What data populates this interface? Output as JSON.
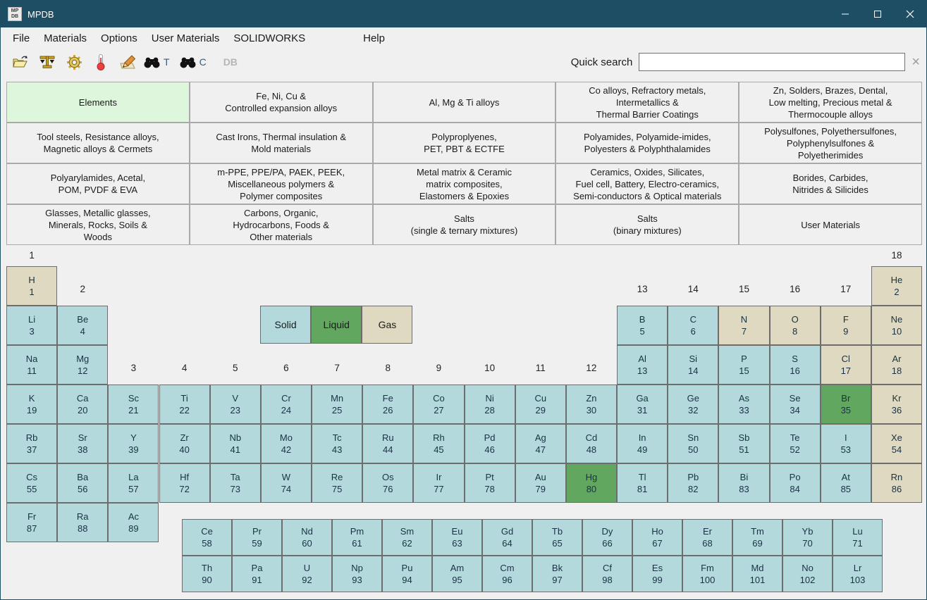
{
  "window": {
    "title": "MPDB",
    "icon_text_top": "MP",
    "icon_text_bottom": "DB"
  },
  "menu": {
    "items": [
      "File",
      "Materials",
      "Options",
      "User Materials",
      "SOLIDWORKS",
      "Help"
    ]
  },
  "toolbar": {
    "letter_t": "T",
    "letter_c": "C",
    "db_label": "DB",
    "search_label": "Quick search",
    "search_value": "",
    "clear_glyph": "×"
  },
  "categories": {
    "active": "Elements",
    "rows": [
      [
        "Elements",
        "Fe, Ni, Cu &\nControlled expansion alloys",
        "Al, Mg & Ti alloys",
        "Co alloys, Refractory metals,\nIntermetallics &\nThermal Barrier Coatings",
        "Zn, Solders, Brazes, Dental,\nLow melting, Precious metal &\nThermocouple alloys"
      ],
      [
        "Tool steels, Resistance alloys,\nMagnetic alloys & Cermets",
        "Cast Irons, Thermal insulation &\nMold materials",
        "Polyproplyenes,\nPET, PBT & ECTFE",
        "Polyamides, Polyamide-imides,\nPolyesters & Polyphthalamides",
        "Polysulfones, Polyethersulfones,\nPolyphenylsulfones &\nPolyetherimides"
      ],
      [
        "Polyarylamides, Acetal,\nPOM, PVDF & EVA",
        "m-PPE, PPE/PA, PAEK, PEEK,\nMiscellaneous polymers &\nPolymer composites",
        "Metal matrix & Ceramic\nmatrix composites,\nElastomers & Epoxies",
        "Ceramics, Oxides, Silicates,\nFuel cell, Battery, Electro-ceramics,\nSemi-conductors & Optical materials",
        "Borides, Carbides,\nNitrides & Silicides"
      ],
      [
        "Glasses, Metallic glasses,\nMinerals, Rocks, Soils &\nWoods",
        "Carbons, Organic,\nHydrocarbons, Foods &\nOther materials",
        "Salts\n(single & ternary mixtures)",
        "Salts\n(binary mixtures)",
        "User Materials"
      ]
    ]
  },
  "legend": [
    {
      "label": "Solid",
      "state": "solid"
    },
    {
      "label": "Liquid",
      "state": "liquid"
    },
    {
      "label": "Gas",
      "state": "gas"
    }
  ],
  "periodic_table": {
    "group_labels": [
      {
        "text": "1",
        "col": 1,
        "band": "top"
      },
      {
        "text": "18",
        "col": 18,
        "band": "top"
      },
      {
        "text": "2",
        "col": 2,
        "band": "mid"
      },
      {
        "text": "13",
        "col": 13,
        "band": "mid"
      },
      {
        "text": "14",
        "col": 14,
        "band": "mid"
      },
      {
        "text": "15",
        "col": 15,
        "band": "mid"
      },
      {
        "text": "16",
        "col": 16,
        "band": "mid"
      },
      {
        "text": "17",
        "col": 17,
        "band": "mid"
      },
      {
        "text": "3",
        "col": 3,
        "band": "low"
      },
      {
        "text": "4",
        "col": 4,
        "band": "low"
      },
      {
        "text": "5",
        "col": 5,
        "band": "low"
      },
      {
        "text": "6",
        "col": 6,
        "band": "low"
      },
      {
        "text": "7",
        "col": 7,
        "band": "low"
      },
      {
        "text": "8",
        "col": 8,
        "band": "low"
      },
      {
        "text": "9",
        "col": 9,
        "band": "low"
      },
      {
        "text": "10",
        "col": 10,
        "band": "low"
      },
      {
        "text": "11",
        "col": 11,
        "band": "low"
      },
      {
        "text": "12",
        "col": 12,
        "band": "low"
      }
    ],
    "elements": [
      [
        "H",
        1,
        1,
        1,
        "gas"
      ],
      [
        "He",
        2,
        1,
        18,
        "gas"
      ],
      [
        "Li",
        3,
        2,
        1,
        "solid"
      ],
      [
        "Be",
        4,
        2,
        2,
        "solid"
      ],
      [
        "B",
        5,
        2,
        13,
        "solid"
      ],
      [
        "C",
        6,
        2,
        14,
        "solid"
      ],
      [
        "N",
        7,
        2,
        15,
        "gas"
      ],
      [
        "O",
        8,
        2,
        16,
        "gas"
      ],
      [
        "F",
        9,
        2,
        17,
        "gas"
      ],
      [
        "Ne",
        10,
        2,
        18,
        "gas"
      ],
      [
        "Na",
        11,
        3,
        1,
        "solid"
      ],
      [
        "Mg",
        12,
        3,
        2,
        "solid"
      ],
      [
        "Al",
        13,
        3,
        13,
        "solid"
      ],
      [
        "Si",
        14,
        3,
        14,
        "solid"
      ],
      [
        "P",
        15,
        3,
        15,
        "solid"
      ],
      [
        "S",
        16,
        3,
        16,
        "solid"
      ],
      [
        "Cl",
        17,
        3,
        17,
        "gas"
      ],
      [
        "Ar",
        18,
        3,
        18,
        "gas"
      ],
      [
        "K",
        19,
        4,
        1,
        "solid"
      ],
      [
        "Ca",
        20,
        4,
        2,
        "solid"
      ],
      [
        "Sc",
        21,
        4,
        3,
        "solid"
      ],
      [
        "Ti",
        22,
        4,
        4,
        "solid"
      ],
      [
        "V",
        23,
        4,
        5,
        "solid"
      ],
      [
        "Cr",
        24,
        4,
        6,
        "solid"
      ],
      [
        "Mn",
        25,
        4,
        7,
        "solid"
      ],
      [
        "Fe",
        26,
        4,
        8,
        "solid"
      ],
      [
        "Co",
        27,
        4,
        9,
        "solid"
      ],
      [
        "Ni",
        28,
        4,
        10,
        "solid"
      ],
      [
        "Cu",
        29,
        4,
        11,
        "solid"
      ],
      [
        "Zn",
        30,
        4,
        12,
        "solid"
      ],
      [
        "Ga",
        31,
        4,
        13,
        "solid"
      ],
      [
        "Ge",
        32,
        4,
        14,
        "solid"
      ],
      [
        "As",
        33,
        4,
        15,
        "solid"
      ],
      [
        "Se",
        34,
        4,
        16,
        "solid"
      ],
      [
        "Br",
        35,
        4,
        17,
        "liquid"
      ],
      [
        "Kr",
        36,
        4,
        18,
        "gas"
      ],
      [
        "Rb",
        37,
        5,
        1,
        "solid"
      ],
      [
        "Sr",
        38,
        5,
        2,
        "solid"
      ],
      [
        "Y",
        39,
        5,
        3,
        "solid"
      ],
      [
        "Zr",
        40,
        5,
        4,
        "solid"
      ],
      [
        "Nb",
        41,
        5,
        5,
        "solid"
      ],
      [
        "Mo",
        42,
        5,
        6,
        "solid"
      ],
      [
        "Tc",
        43,
        5,
        7,
        "solid"
      ],
      [
        "Ru",
        44,
        5,
        8,
        "solid"
      ],
      [
        "Rh",
        45,
        5,
        9,
        "solid"
      ],
      [
        "Pd",
        46,
        5,
        10,
        "solid"
      ],
      [
        "Ag",
        47,
        5,
        11,
        "solid"
      ],
      [
        "Cd",
        48,
        5,
        12,
        "solid"
      ],
      [
        "In",
        49,
        5,
        13,
        "solid"
      ],
      [
        "Sn",
        50,
        5,
        14,
        "solid"
      ],
      [
        "Sb",
        51,
        5,
        15,
        "solid"
      ],
      [
        "Te",
        52,
        5,
        16,
        "solid"
      ],
      [
        "I",
        53,
        5,
        17,
        "solid"
      ],
      [
        "Xe",
        54,
        5,
        18,
        "gas"
      ],
      [
        "Cs",
        55,
        6,
        1,
        "solid"
      ],
      [
        "Ba",
        56,
        6,
        2,
        "solid"
      ],
      [
        "La",
        57,
        6,
        3,
        "solid"
      ],
      [
        "Hf",
        72,
        6,
        4,
        "solid"
      ],
      [
        "Ta",
        73,
        6,
        5,
        "solid"
      ],
      [
        "W",
        74,
        6,
        6,
        "solid"
      ],
      [
        "Re",
        75,
        6,
        7,
        "solid"
      ],
      [
        "Os",
        76,
        6,
        8,
        "solid"
      ],
      [
        "Ir",
        77,
        6,
        9,
        "solid"
      ],
      [
        "Pt",
        78,
        6,
        10,
        "solid"
      ],
      [
        "Au",
        79,
        6,
        11,
        "solid"
      ],
      [
        "Hg",
        80,
        6,
        12,
        "liquid"
      ],
      [
        "Tl",
        81,
        6,
        13,
        "solid"
      ],
      [
        "Pb",
        82,
        6,
        14,
        "solid"
      ],
      [
        "Bi",
        83,
        6,
        15,
        "solid"
      ],
      [
        "Po",
        84,
        6,
        16,
        "solid"
      ],
      [
        "At",
        85,
        6,
        17,
        "solid"
      ],
      [
        "Rn",
        86,
        6,
        18,
        "gas"
      ],
      [
        "Fr",
        87,
        7,
        1,
        "solid"
      ],
      [
        "Ra",
        88,
        7,
        2,
        "solid"
      ],
      [
        "Ac",
        89,
        7,
        3,
        "solid"
      ],
      [
        "Ce",
        58,
        "L",
        1,
        "solid"
      ],
      [
        "Pr",
        59,
        "L",
        2,
        "solid"
      ],
      [
        "Nd",
        60,
        "L",
        3,
        "solid"
      ],
      [
        "Pm",
        61,
        "L",
        4,
        "solid"
      ],
      [
        "Sm",
        62,
        "L",
        5,
        "solid"
      ],
      [
        "Eu",
        63,
        "L",
        6,
        "solid"
      ],
      [
        "Gd",
        64,
        "L",
        7,
        "solid"
      ],
      [
        "Tb",
        65,
        "L",
        8,
        "solid"
      ],
      [
        "Dy",
        66,
        "L",
        9,
        "solid"
      ],
      [
        "Ho",
        67,
        "L",
        10,
        "solid"
      ],
      [
        "Er",
        68,
        "L",
        11,
        "solid"
      ],
      [
        "Tm",
        69,
        "L",
        12,
        "solid"
      ],
      [
        "Yb",
        70,
        "L",
        13,
        "solid"
      ],
      [
        "Lu",
        71,
        "L",
        14,
        "solid"
      ],
      [
        "Th",
        90,
        "A",
        1,
        "solid"
      ],
      [
        "Pa",
        91,
        "A",
        2,
        "solid"
      ],
      [
        "U",
        92,
        "A",
        3,
        "solid"
      ],
      [
        "Np",
        93,
        "A",
        4,
        "solid"
      ],
      [
        "Pu",
        94,
        "A",
        5,
        "solid"
      ],
      [
        "Am",
        95,
        "A",
        6,
        "solid"
      ],
      [
        "Cm",
        96,
        "A",
        7,
        "solid"
      ],
      [
        "Bk",
        97,
        "A",
        8,
        "solid"
      ],
      [
        "Cf",
        98,
        "A",
        9,
        "solid"
      ],
      [
        "Es",
        99,
        "A",
        10,
        "solid"
      ],
      [
        "Fm",
        100,
        "A",
        11,
        "solid"
      ],
      [
        "Md",
        101,
        "A",
        12,
        "solid"
      ],
      [
        "No",
        102,
        "A",
        13,
        "solid"
      ],
      [
        "Lr",
        103,
        "A",
        14,
        "solid"
      ]
    ]
  },
  "colors": {
    "titlebar": "#1d4e63",
    "solid": "#b3d9dd",
    "liquid": "#61a75f",
    "gas": "#ded9c0",
    "active_category": "#ddf6dc",
    "cell_border": "#6d6d6d",
    "element_text": "#1a3144"
  }
}
